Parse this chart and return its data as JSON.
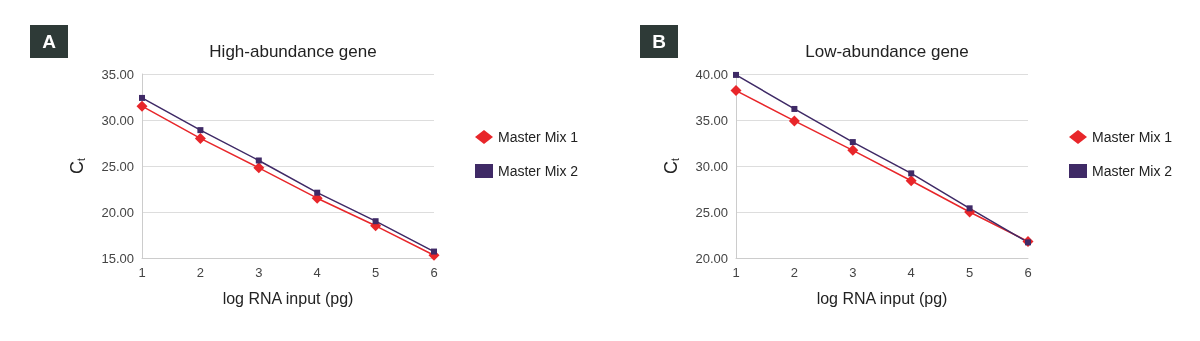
{
  "chart_data": [
    {
      "type": "line",
      "title": "High-abundance gene",
      "xlabel": "log RNA input (pg)",
      "ylabel": "C$_{t}$",
      "annotations": [
        "A"
      ],
      "x": [
        1,
        2,
        3,
        4,
        5,
        6
      ],
      "xlim": [
        1,
        6
      ],
      "xticks": [
        1,
        2,
        3,
        4,
        5,
        6
      ],
      "ylim": [
        15,
        35
      ],
      "yticks": [
        {
          "value": 15,
          "label": "15.00"
        },
        {
          "value": 20,
          "label": "20.00"
        },
        {
          "value": 25,
          "label": "25.00"
        },
        {
          "value": 30,
          "label": "30.00"
        },
        {
          "value": 35,
          "label": "35.00"
        }
      ],
      "grid": "y",
      "legend": "right",
      "series": [
        {
          "name": "Master Mix 1",
          "color": "#e8262a",
          "marker": "diamond",
          "values": [
            31.5,
            28.0,
            24.8,
            21.5,
            18.5,
            15.3
          ]
        },
        {
          "name": "Master Mix 2",
          "color": "#3f2a66",
          "marker": "square",
          "values": [
            32.4,
            28.9,
            25.6,
            22.1,
            19.0,
            15.7
          ]
        }
      ]
    },
    {
      "type": "line",
      "title": "Low-abundance gene",
      "xlabel": "log RNA input (pg)",
      "ylabel": "C$_{t}$",
      "annotations": [
        "B"
      ],
      "x": [
        1,
        2,
        3,
        4,
        5,
        6
      ],
      "xlim": [
        1,
        6
      ],
      "xticks": [
        1,
        2,
        3,
        4,
        5,
        6
      ],
      "ylim": [
        20,
        40
      ],
      "yticks": [
        {
          "value": 20,
          "label": "20.00"
        },
        {
          "value": 25,
          "label": "25.00"
        },
        {
          "value": 30,
          "label": "30.00"
        },
        {
          "value": 35,
          "label": "35.00"
        },
        {
          "value": 40,
          "label": "40.00"
        }
      ],
      "grid": "y",
      "legend": "right",
      "series": [
        {
          "name": "Master Mix 1",
          "color": "#e8262a",
          "marker": "diamond",
          "values": [
            38.2,
            34.9,
            31.7,
            28.4,
            25.0,
            21.8
          ]
        },
        {
          "name": "Master Mix 2",
          "color": "#3f2a66",
          "marker": "square",
          "values": [
            39.9,
            36.2,
            32.6,
            29.2,
            25.4,
            21.7
          ]
        }
      ]
    }
  ]
}
